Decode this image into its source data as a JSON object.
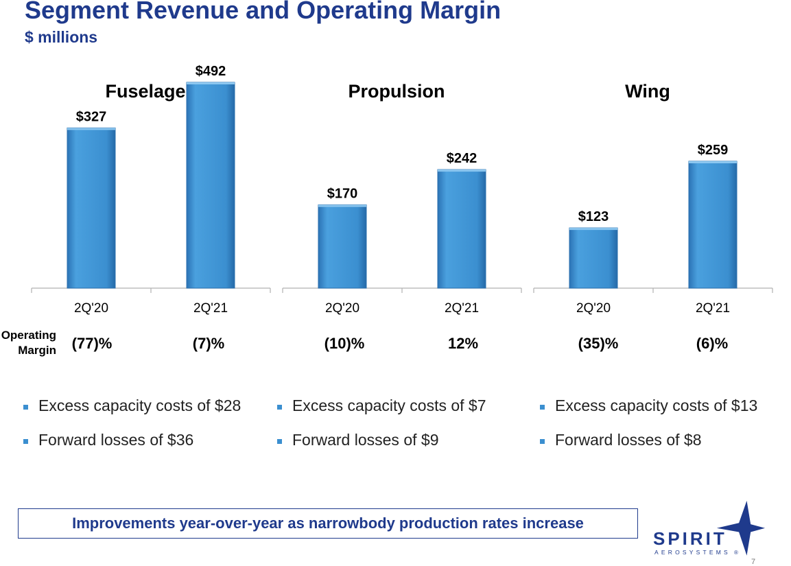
{
  "header": {
    "title": "Segment Revenue and Operating Margin",
    "subtitle": "$ millions"
  },
  "margin_row_label": "Operating Margin",
  "chart_data": [
    {
      "type": "bar",
      "title": "Fuselage",
      "categories": [
        "2Q'20",
        "2Q'21"
      ],
      "values": [
        327,
        492
      ],
      "value_labels": [
        "$327",
        "$492"
      ],
      "operating_margin": [
        "(77)%",
        "(7)%"
      ],
      "ylim": [
        0,
        520
      ],
      "color": "#3b8fd0"
    },
    {
      "type": "bar",
      "title": "Propulsion",
      "categories": [
        "2Q'20",
        "2Q'21"
      ],
      "values": [
        170,
        242
      ],
      "value_labels": [
        "$170",
        "$242"
      ],
      "operating_margin": [
        "(10)%",
        "12%"
      ],
      "ylim": [
        0,
        520
      ],
      "color": "#3b8fd0"
    },
    {
      "type": "bar",
      "title": "Wing",
      "categories": [
        "2Q'20",
        "2Q'21"
      ],
      "values": [
        123,
        259
      ],
      "value_labels": [
        "$123",
        "$259"
      ],
      "operating_margin": [
        "(35)%",
        "(6)%"
      ],
      "ylim": [
        0,
        520
      ],
      "color": "#3b8fd0"
    }
  ],
  "notes": [
    [
      "Excess capacity costs of $28",
      "Forward losses of $36"
    ],
    [
      "Excess capacity costs of $7",
      "Forward losses of $9"
    ],
    [
      "Excess capacity costs of $13",
      "Forward losses of $8"
    ]
  ],
  "callout": "Improvements year-over-year as narrowbody production rates increase",
  "logo": {
    "name": "SPIRIT",
    "tagline": "AEROSYSTEMS",
    "mark": "®"
  },
  "page_number": "7",
  "colors": {
    "title": "#1f3a8c",
    "bar": "#3b8fd0",
    "bullet": "#3b8fd0"
  }
}
